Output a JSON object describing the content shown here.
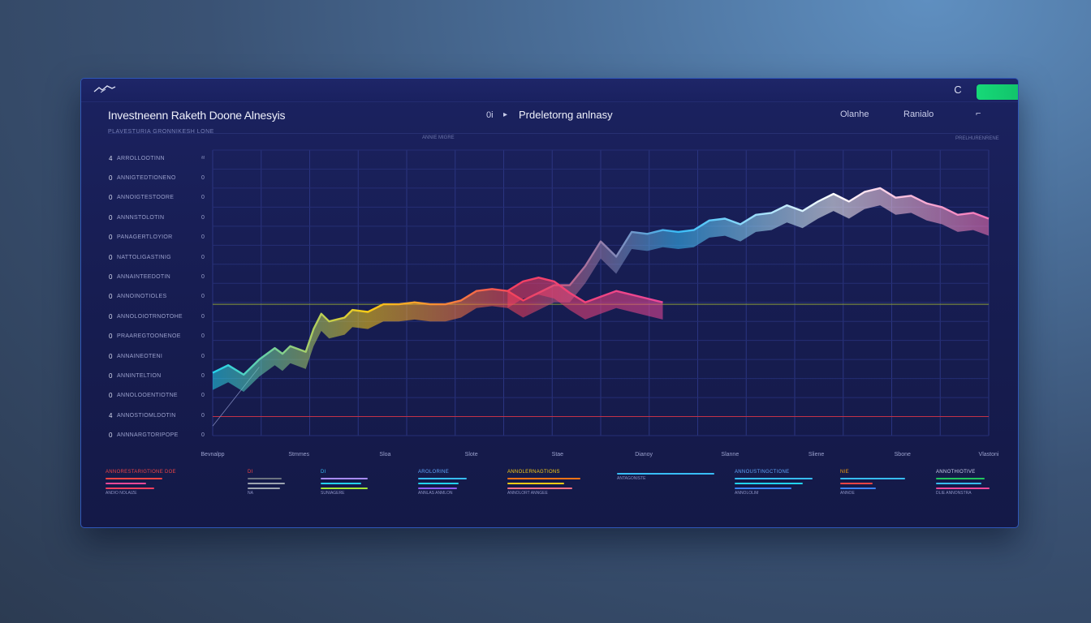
{
  "header": {
    "title": "Investneenn Raketh Doone Alnesyis",
    "subtitle": "PLAVESTURIA GRONNIKESH LONE",
    "center_prefix": "0i",
    "center_arrow": "▸",
    "center_title": "Prdeletorng anlnasy",
    "center_sub": "ANNIE MIGRE",
    "nav": [
      "Olanhe",
      "Ranialo"
    ],
    "nav_chevron": "⌐",
    "right_sub": "PRELHURENRENE"
  },
  "titlebar": {
    "refresh_glyph": "C",
    "action_label": ""
  },
  "sidebar": {
    "rows": [
      {
        "idx": "4",
        "label": "ARROLLOOTINN",
        "value": "ᵃᵗ"
      },
      {
        "idx": "0",
        "label": "ANNIGTEDTIONENO",
        "value": "0"
      },
      {
        "idx": "0",
        "label": "ANNOIGTESTOORE",
        "value": "0"
      },
      {
        "idx": "0",
        "label": "ANNNSTOLOTIN",
        "value": "0"
      },
      {
        "idx": "0",
        "label": "PANAGERTLOYIOR",
        "value": "0"
      },
      {
        "idx": "0",
        "label": "NATTOLIGASTINIG",
        "value": "0"
      },
      {
        "idx": "0",
        "label": "ANNAINTEEDOTIN",
        "value": "0"
      },
      {
        "idx": "0",
        "label": "ANNOINOTIOLES",
        "value": "0"
      },
      {
        "idx": "0",
        "label": "ANNOLOIOTRNOTOHE",
        "value": "0"
      },
      {
        "idx": "0",
        "label": "PRAAREGTOONENOE",
        "value": "0"
      },
      {
        "idx": "0",
        "label": "ANNAINEOTENI",
        "value": "0"
      },
      {
        "idx": "0",
        "label": "ANNINTELTION",
        "value": "0"
      },
      {
        "idx": "0",
        "label": "ANNOLOOENTIOTNE",
        "value": "0"
      },
      {
        "idx": "4",
        "label": "ANNOSTIOMLDOTIN",
        "value": "0"
      },
      {
        "idx": "0",
        "label": "ANNNARGTORIPOPE",
        "value": "0"
      }
    ]
  },
  "chart_data": {
    "type": "line",
    "title": "",
    "xlabel": "",
    "ylabel": "",
    "x_tick_labels": [
      "Bevnalpp",
      "Stmmes",
      "Sloa",
      "Slote",
      "Stae",
      "Dianoy",
      "Slanne",
      "Sliene",
      "Sbone",
      "Vlastoni"
    ],
    "ylim": [
      0,
      15
    ],
    "grid": true,
    "series": [
      {
        "color_stops": [
          "#22d3ee",
          "#facc15",
          "#f43f5e",
          "#38bdf8",
          "#ffffff",
          "#f472b6"
        ],
        "x": [
          0,
          2,
          4,
          5,
          6,
          8,
          9,
          10,
          12,
          13,
          14,
          15,
          17,
          18,
          20,
          22,
          24,
          26,
          28,
          30,
          32,
          34,
          36,
          38,
          40,
          42,
          44,
          46,
          48,
          50,
          52,
          54,
          56,
          58,
          60,
          62,
          64,
          66,
          68,
          70,
          72,
          74,
          76,
          78,
          80,
          82,
          84,
          86,
          88,
          90,
          92,
          94,
          96,
          98,
          100
        ],
        "values": [
          3.3,
          3.7,
          3.2,
          3.6,
          4.0,
          4.6,
          4.3,
          4.7,
          4.4,
          5.6,
          6.4,
          6.0,
          6.2,
          6.6,
          6.5,
          6.9,
          6.9,
          7.0,
          6.9,
          6.9,
          7.1,
          7.6,
          7.7,
          7.6,
          7.1,
          7.5,
          7.9,
          7.9,
          8.9,
          10.2,
          9.4,
          10.7,
          10.6,
          10.8,
          10.7,
          10.8,
          11.3,
          11.4,
          11.1,
          11.6,
          11.7,
          12.1,
          11.8,
          12.3,
          12.7,
          12.3,
          12.8,
          13.0,
          12.5,
          12.6,
          12.2,
          12.0,
          11.6,
          11.7,
          11.4
        ]
      },
      {
        "color_stops": [
          "#f43f5e",
          "#ec4899"
        ],
        "x": [
          38,
          40,
          42,
          44,
          46,
          48,
          50,
          52,
          54,
          56,
          58
        ],
        "values": [
          7.6,
          8.1,
          8.3,
          8.1,
          7.5,
          7.0,
          7.3,
          7.6,
          7.4,
          7.2,
          7.0
        ]
      }
    ],
    "reference_lines": [
      {
        "value": 6.9,
        "color": "#8a9a3a"
      },
      {
        "value": 1.0,
        "color": "#c23148"
      }
    ]
  },
  "footer": {
    "groups": [
      {
        "title": "ANNORESTARIGTIONE DOE",
        "title_color": "#ef4444",
        "lines": [
          {
            "c": "#ef4444",
            "w": 70
          },
          {
            "c": "#ec4899",
            "w": 50
          },
          {
            "c": "#f43f5e",
            "w": 60
          }
        ],
        "text": "ANDIO NOLAIZE"
      },
      {
        "title": "DI",
        "title_color": "#ef4444",
        "lines": [
          {
            "c": "#6b7280",
            "w": 42
          },
          {
            "c": "#9ca3af",
            "w": 46
          },
          {
            "c": "#9ca3af",
            "w": 40
          }
        ],
        "text": "NA"
      },
      {
        "title": "DI",
        "title_color": "#38bdf8",
        "lines": [
          {
            "c": "#a78bfa",
            "w": 58
          },
          {
            "c": "#22d3ee",
            "w": 50
          },
          {
            "c": "#a3e635",
            "w": 58
          }
        ],
        "text": "SUNIAGERE"
      },
      {
        "title": "AROLORINE",
        "title_color": "#60a5fa",
        "lines": [
          {
            "c": "#38bdf8",
            "w": 60
          },
          {
            "c": "#22d3ee",
            "w": 50
          },
          {
            "c": "#8b5cf6",
            "w": 48
          }
        ],
        "text": "ANNLAS ANMLON"
      },
      {
        "title": "ANNOLERNAGTIONS",
        "title_color": "#facc15",
        "lines": [
          {
            "c": "#f97316",
            "w": 90
          },
          {
            "c": "#facc15",
            "w": 70
          },
          {
            "c": "#fb7185",
            "w": 80
          }
        ],
        "text": "ANNOLORT ANNGEE"
      },
      {
        "title": "",
        "title_color": "#38bdf8",
        "lines": [
          {
            "c": "#38bdf8",
            "w": 120
          }
        ],
        "text": "ANTAGONISTE"
      },
      {
        "title": "ANNOUSTINGCTIONE",
        "title_color": "#60a5fa",
        "lines": [
          {
            "c": "#38bdf8",
            "w": 96
          },
          {
            "c": "#22d3ee",
            "w": 84
          },
          {
            "c": "#3b82f6",
            "w": 70
          }
        ],
        "text": "ANNOLOLIM"
      },
      {
        "title": "NIE",
        "title_color": "#f59e0b",
        "lines": [
          {
            "c": "#38bdf8",
            "w": 80
          },
          {
            "c": "#ef4444",
            "w": 40
          },
          {
            "c": "#3b82f6",
            "w": 44
          }
        ],
        "text": "ANNOE"
      },
      {
        "title": "ANNOTHIOTIVE",
        "title_color": "#c9cdea",
        "lines": [
          {
            "c": "#22c55e",
            "w": 60
          },
          {
            "c": "#38bdf8",
            "w": 56
          },
          {
            "c": "#ec4899",
            "w": 66
          }
        ],
        "text": "DLIE ANNONSTRA"
      }
    ]
  }
}
